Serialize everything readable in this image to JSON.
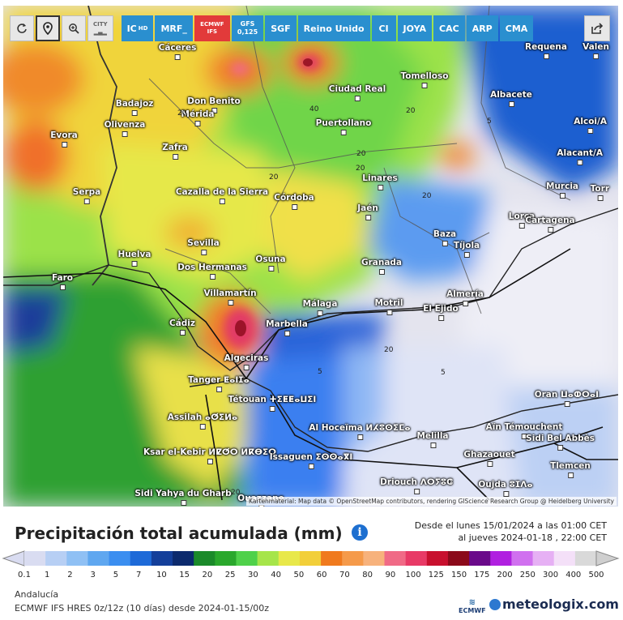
{
  "toolbar": {
    "buttons": [
      {
        "label": "",
        "icon": "refresh-icon"
      },
      {
        "label": "",
        "icon": "location-pin-icon"
      },
      {
        "label": "",
        "icon": "zoom-icon"
      },
      {
        "label": "CITY",
        "icon": "city-toggle-icon"
      }
    ],
    "models": [
      {
        "label": "IC",
        "sub": "HD",
        "style": "blue"
      },
      {
        "label": "MRF_",
        "style": "blue"
      },
      {
        "label": "ECMWF",
        "sub": "IFS",
        "style": "red"
      },
      {
        "label": "GFS",
        "sub": "0,125",
        "style": "blue"
      },
      {
        "label": "SGF",
        "style": "blue"
      },
      {
        "label": "Reino Unido",
        "style": "blue"
      },
      {
        "label": "CI",
        "style": "blue"
      },
      {
        "label": "JOYA",
        "style": "blue"
      },
      {
        "label": "CAC",
        "style": "blue"
      },
      {
        "label": "ARP",
        "style": "blue"
      },
      {
        "label": "CMA",
        "style": "blue"
      }
    ]
  },
  "map": {
    "cities": [
      "Cáceres",
      "Tomelloso",
      "Requena",
      "Valen",
      "Ciudad Real",
      "Badajoz",
      "Don Benito",
      "Albacete",
      "Alcoi/A",
      "Olivenza",
      "Mérida",
      "Puertollano",
      "Evora",
      "Zafra",
      "Alacant/A",
      "Linares",
      "Cazalla de la Sierra",
      "Murcia",
      "Torr",
      "Serpa",
      "Córdoba",
      "Jaén",
      "Lorca",
      "Cartagena",
      "Baza",
      "Sevilla",
      "Huelva",
      "Tíjola",
      "Osuna",
      "Dos Hermanas",
      "Granada",
      "Faro",
      "Villamartín",
      "Almería",
      "Málaga",
      "Motril",
      "El Ejido",
      "Cádiz",
      "Marbella",
      "Algeciras",
      "Tanger ⵟⴰⵏⵊⴰ",
      "Tétouan ⵜⵉⵟⵟⴰⵡⵉⵏ",
      "Oran ⵡⴰⵀⵔⴰⵏ",
      "Assilah ⴰⵚⵉⵍⴰ",
      "Al Hoceïma ⵍⵃⵓⵙⵉⵎⴰ",
      "Aïn Témouchent",
      "Sidi Bel Abbès",
      "Melilla",
      "Ksar el-Kebir ⵍⵇⵚⵔ ⵍⴽⴱⵉⵔ",
      "Issaguen ⵉⵙⵙⴰⴳⵏ",
      "Ghazaouet",
      "Tlemcen",
      "Driouch ⴷⵔⵢⵓⵛ",
      "Oujda ⵓⵊⴷⴰ",
      "Sidi Yahya du Gharb",
      "Ouazzane"
    ],
    "contour_labels": [
      "40",
      "20",
      "20",
      "20",
      "20",
      "20",
      "20",
      "5",
      "5",
      "5",
      "20",
      "20"
    ],
    "attribution": "Kartenmaterial: Map data © OpenStreetMap contributors, rendering GIScience Research Group @ Heidelberg University"
  },
  "legend": {
    "title": "Precipitación total acumulada (mm)",
    "period_line1": "Desde el lunes 15/01/2024 a las 01:00 CET",
    "period_line2": "al jueves 2024-01-18 , 22:00 CET",
    "ticks": [
      "0.1",
      "1",
      "2",
      "3",
      "5",
      "7",
      "10",
      "15",
      "20",
      "25",
      "30",
      "40",
      "50",
      "60",
      "70",
      "80",
      "90",
      "100",
      "125",
      "150",
      "175",
      "200",
      "250",
      "300",
      "400",
      "500"
    ],
    "colors": [
      "#d9dcf1",
      "#b7cff4",
      "#8fc0f4",
      "#5fa7f0",
      "#3b8ef0",
      "#1e6ad8",
      "#143f9a",
      "#0c2a6d",
      "#1b8a2a",
      "#2aa82c",
      "#4fd14a",
      "#a6e54a",
      "#e8e84a",
      "#f2cf3a",
      "#f07a1e",
      "#f59a4a",
      "#f7b27c",
      "#f06a86",
      "#e83a66",
      "#c8102e",
      "#8b0a1a",
      "#6a0a8a",
      "#b020e0",
      "#d070ef",
      "#e6b0f4",
      "#f4e0f8",
      "#d9d9d9"
    ]
  },
  "footer": {
    "region": "Andalucía",
    "run": "ECMWF IFS HRES 0z/12z (10 días) desde 2024-01-15/00z",
    "ecmwf_label": "ECMWF",
    "brand": "meteologix.com"
  }
}
